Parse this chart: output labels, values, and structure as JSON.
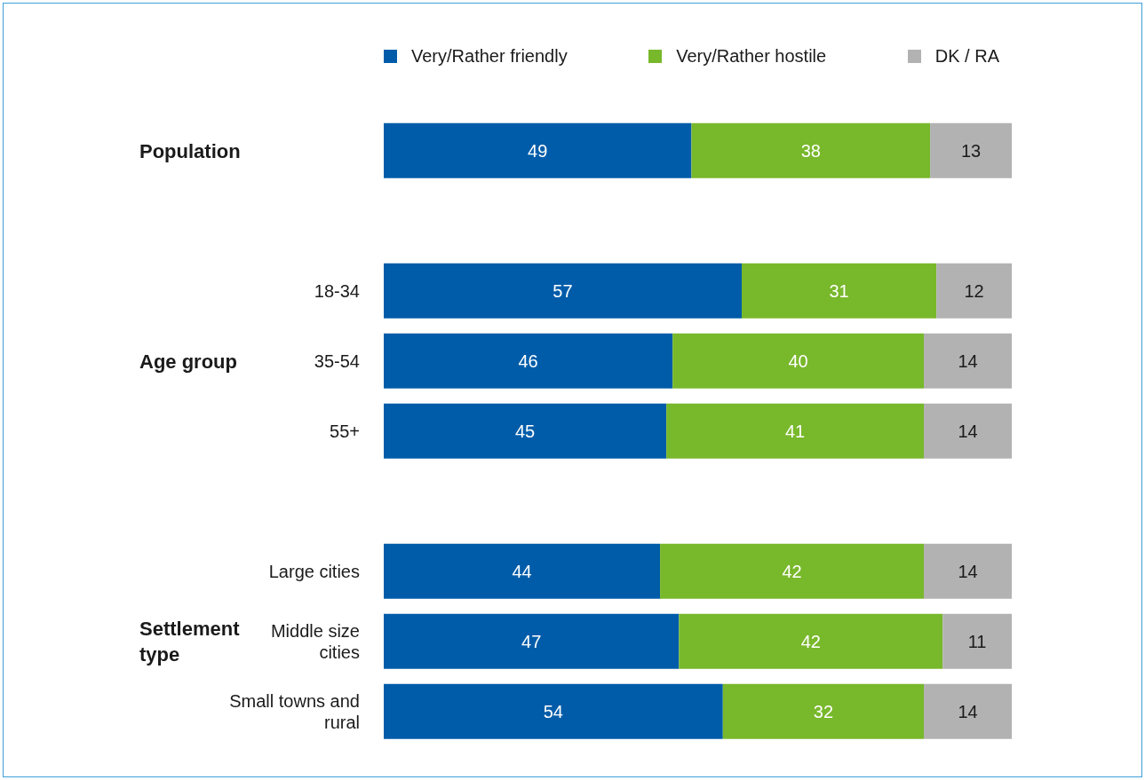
{
  "chart_data": {
    "type": "bar",
    "orientation": "horizontal",
    "stacked": true,
    "legend": "top",
    "data_labels": true,
    "tick_labels": "y",
    "categories": [
      null,
      null,
      "18-34",
      "35-54",
      "55+",
      null,
      "Large cities",
      "Middle size cities",
      "Small towns and rural"
    ],
    "series": [
      {
        "name": "Very/Rather friendly",
        "color": "#005ca9",
        "values": [
          49,
          null,
          57,
          46,
          45,
          null,
          44,
          47,
          54
        ]
      },
      {
        "name": "Very/Rather hostile",
        "color": "#78b82b",
        "values": [
          38,
          null,
          31,
          40,
          41,
          null,
          42,
          42,
          32
        ]
      },
      {
        "name": "DK / RA",
        "color": "#b2b2b2",
        "values": [
          13,
          null,
          12,
          14,
          14,
          null,
          14,
          11,
          14
        ]
      }
    ],
    "annotations": [
      "Population",
      "Age group",
      "Settlement type"
    ]
  }
}
